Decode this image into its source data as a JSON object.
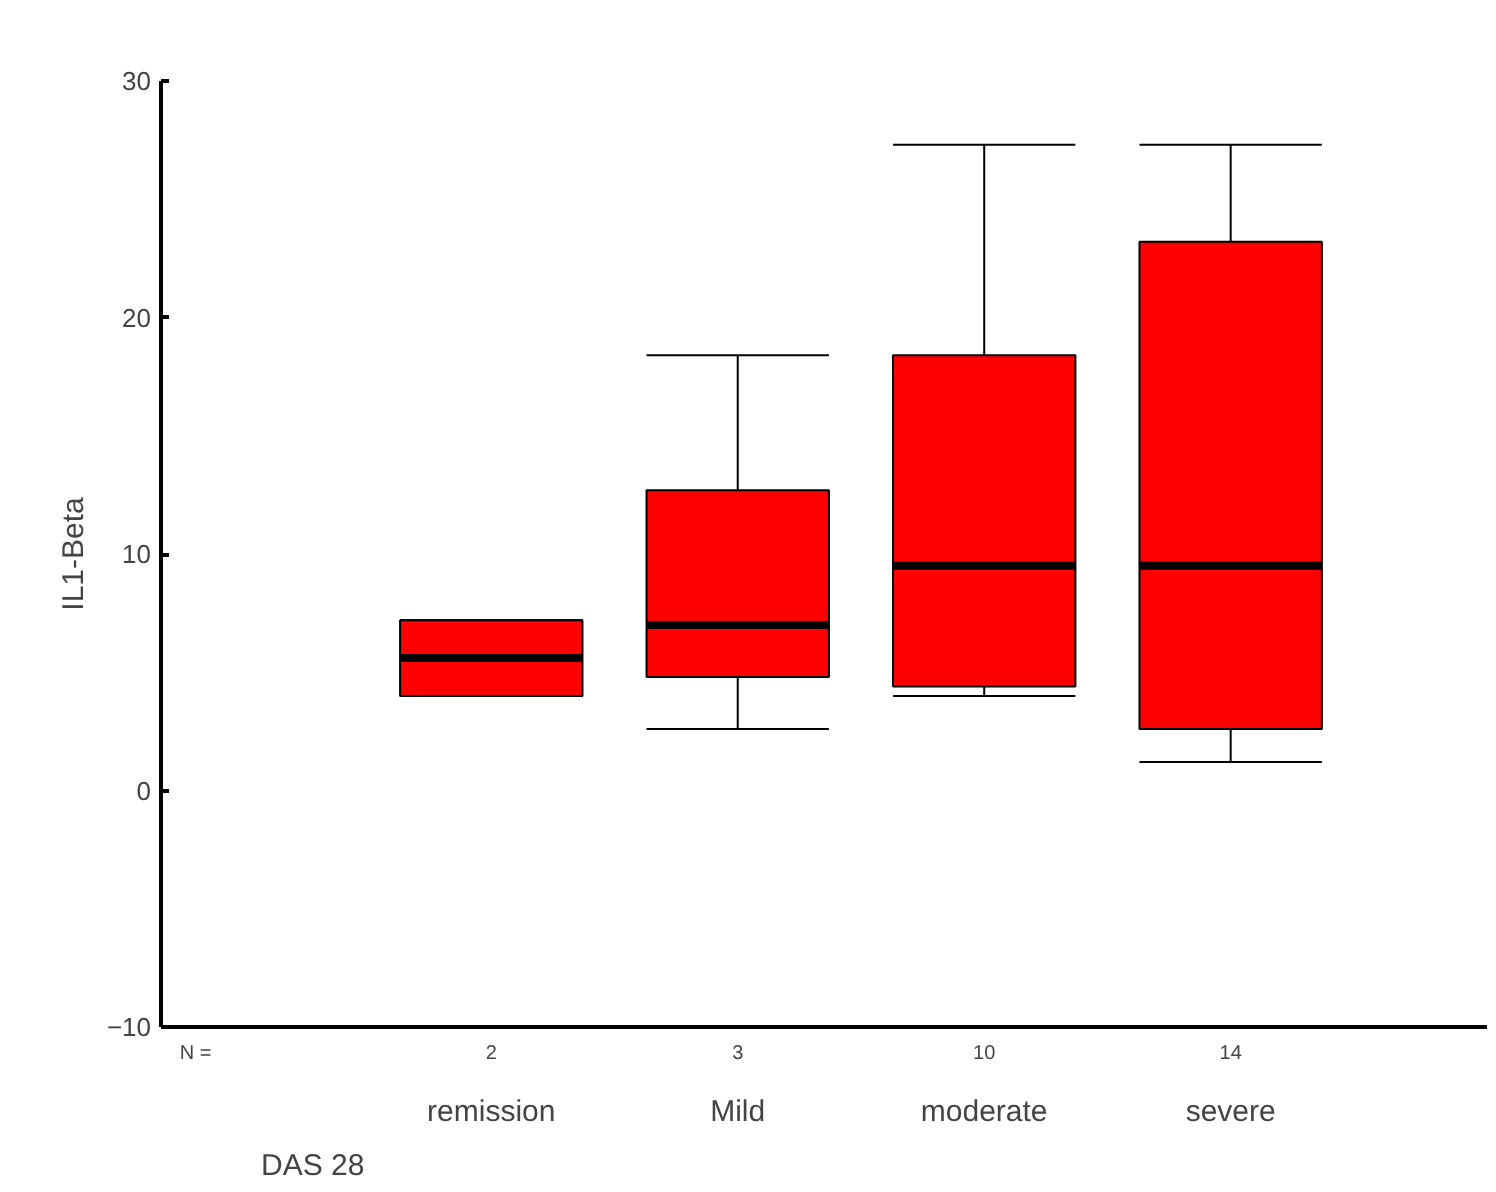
{
  "chart_data": {
    "type": "box",
    "xlabel": "DAS 28",
    "ylabel": "IL1-Beta",
    "categories": [
      "remission",
      "Mild",
      "moderate",
      "severe"
    ],
    "color": "#ff0000",
    "ylim": [
      -10,
      30
    ],
    "yticks": [
      -10,
      0,
      10,
      20,
      30
    ],
    "grid": false,
    "boxes": [
      {
        "low": 4.0,
        "q1": 4.0,
        "median": 5.6,
        "q3": 7.2,
        "high": 7.2
      },
      {
        "low": 2.6,
        "q1": 4.8,
        "median": 7.0,
        "q3": 12.7,
        "high": 18.4
      },
      {
        "low": 4.0,
        "q1": 4.4,
        "median": 9.5,
        "q3": 18.4,
        "high": 27.3
      },
      {
        "low": 1.2,
        "q1": 2.6,
        "median": 9.5,
        "q3": 23.2,
        "high": 27.3
      }
    ],
    "annotations": [
      "N =",
      "2",
      "3",
      "10",
      "14"
    ]
  }
}
